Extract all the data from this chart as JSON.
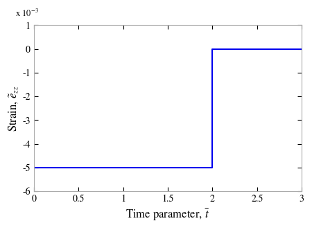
{
  "x": [
    0,
    2,
    2,
    3
  ],
  "y": [
    -0.005,
    -0.005,
    0,
    0
  ],
  "xlim": [
    0,
    3
  ],
  "ylim": [
    -0.006,
    0.001
  ],
  "xticks": [
    0,
    0.5,
    1,
    1.5,
    2,
    2.5,
    3
  ],
  "xtick_labels": [
    "0",
    "0.5",
    "1",
    "1.5",
    "2",
    "2.5",
    "3"
  ],
  "yticks": [
    -0.006,
    -0.005,
    -0.004,
    -0.003,
    -0.002,
    -0.001,
    0,
    0.001
  ],
  "ytick_labels": [
    "-6",
    "-5",
    "-4",
    "-3",
    "-2",
    "-1",
    "0",
    "1"
  ],
  "xlabel": "Time parameter, $\\bar{t}$",
  "ylabel": "Strain, $\\tilde{e}_{zz}$",
  "scale_label": "x 10$^{-3}$",
  "line_color": "#0000ee",
  "line_width": 1.5,
  "background_color": "#ffffff",
  "spine_color": "#aaaaaa",
  "tick_label_fontsize": 10,
  "axis_label_fontsize": 12
}
